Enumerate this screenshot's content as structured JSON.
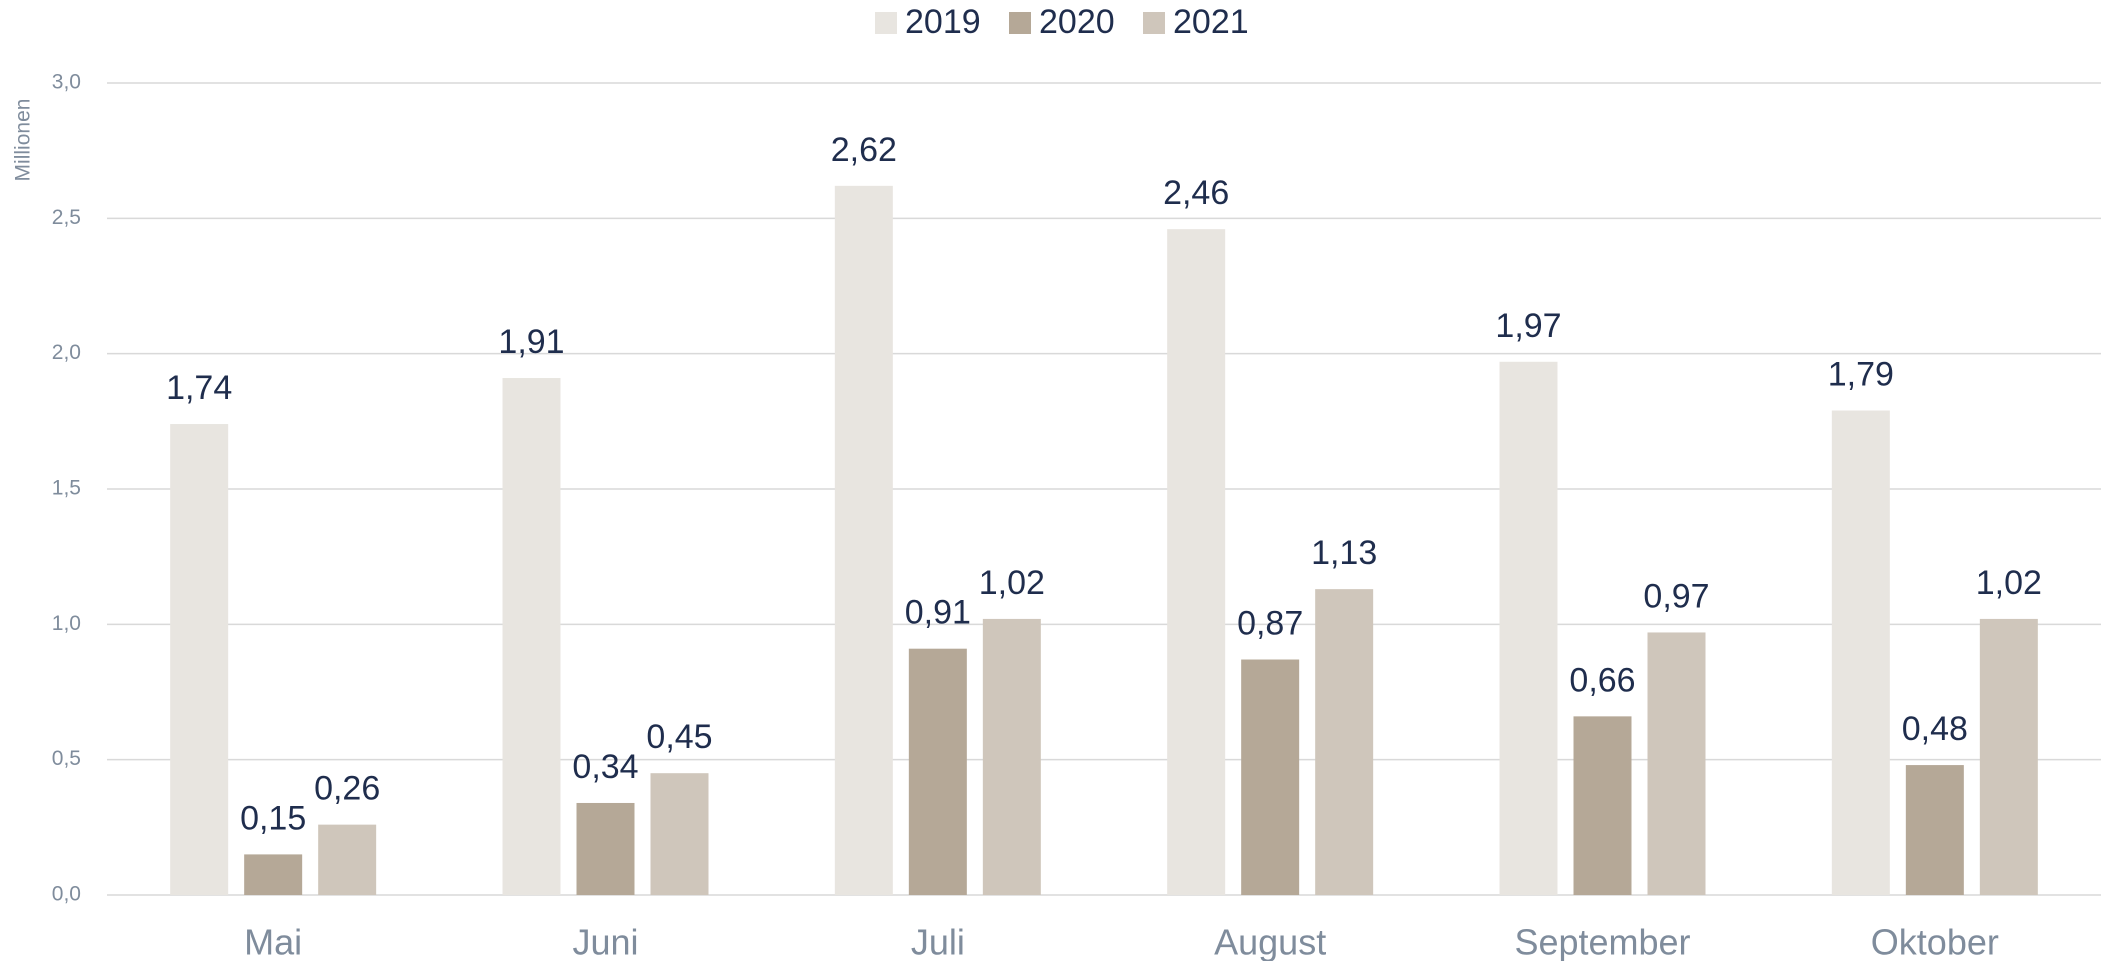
{
  "chart_data": {
    "type": "bar",
    "y_label": "Millionen",
    "categories": [
      "Mai",
      "Juni",
      "Juli",
      "August",
      "September",
      "Oktober"
    ],
    "series": [
      {
        "name": "2019",
        "color": "#e8e5e0",
        "values": [
          1.74,
          1.91,
          2.62,
          2.46,
          1.97,
          1.79
        ],
        "value_labels": [
          "1,74",
          "1,91",
          "2,62",
          "2,46",
          "1,97",
          "1,79"
        ]
      },
      {
        "name": "2020",
        "color": "#b5a897",
        "values": [
          0.15,
          0.34,
          0.91,
          0.87,
          0.66,
          0.48
        ],
        "value_labels": [
          "0,15",
          "0,34",
          "0,91",
          "0,87",
          "0,66",
          "0,48"
        ]
      },
      {
        "name": "2021",
        "color": "#cfc6bb",
        "values": [
          0.26,
          0.45,
          1.02,
          1.13,
          0.97,
          1.02
        ],
        "value_labels": [
          "0,26",
          "0,45",
          "1,02",
          "1,13",
          "0,97",
          "1,02"
        ]
      }
    ],
    "ylim": [
      0,
      3
    ],
    "yticks": [
      {
        "value": 0,
        "label": "0,0"
      },
      {
        "value": 0.5,
        "label": "0,5"
      },
      {
        "value": 1,
        "label": "1,0"
      },
      {
        "value": 1.5,
        "label": "1,5"
      },
      {
        "value": 2,
        "label": "2,0"
      },
      {
        "value": 2.5,
        "label": "2,5"
      },
      {
        "value": 3,
        "label": "3,0"
      }
    ],
    "grid": true,
    "legend": "top"
  }
}
